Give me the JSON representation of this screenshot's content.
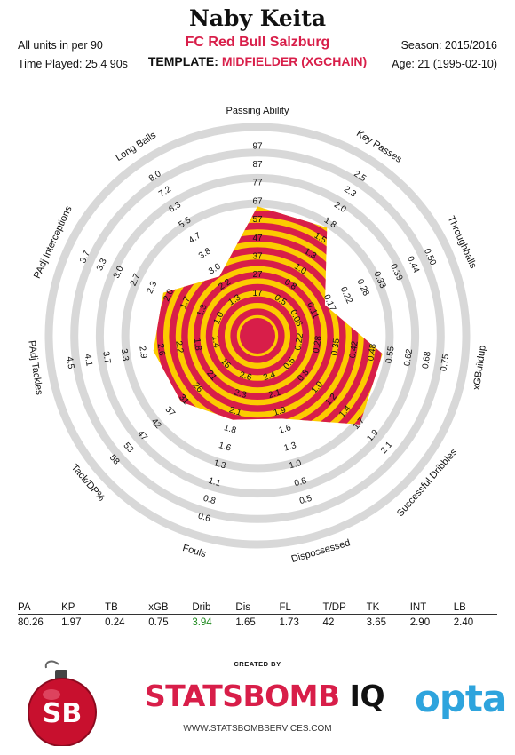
{
  "header": {
    "player_name": "Naby Keita",
    "team": "FC Red Bull Salzburg",
    "units_note": "All units in per 90",
    "time_played": "Time Played: 25.4 90s",
    "template_label": "TEMPLATE:",
    "template_value": "MIDFIELDER (XGCHAIN)",
    "season": "Season: 2015/2016",
    "age": "Age: 21 (1995-02-10)"
  },
  "colors": {
    "band_red": "#d81e49",
    "band_yellow": "#fccb00",
    "ring_gray": "#d8d8d8",
    "accent": "#d81e49",
    "highlight_green": "#1e8a1e",
    "opta_blue": "#2ea4dd"
  },
  "chart_data": {
    "type": "radar",
    "title": "Naby Keita",
    "metrics": [
      {
        "label": "Passing Ability",
        "short": "PA",
        "value": 80.26,
        "ticks": [
          "17",
          "27",
          "37",
          "47",
          "57",
          "67",
          "77",
          "87",
          "97"
        ]
      },
      {
        "label": "Key Passes",
        "short": "KP",
        "value": 1.97,
        "ticks": [
          "0.5",
          "0.8",
          "1.0",
          "1.3",
          "1.5",
          "1.8",
          "2.0",
          "2.3",
          "2.5"
        ]
      },
      {
        "label": "Throughballs",
        "short": "TB",
        "value": 0.24,
        "ticks": [
          "0.06",
          "0.11",
          "0.17",
          "0.22",
          "0.28",
          "0.33",
          "0.39",
          "0.44",
          "0.50"
        ]
      },
      {
        "label": "xGBuildup",
        "short": "xGB",
        "value": 0.75,
        "ticks": [
          "0.22",
          "0.28",
          "0.35",
          "0.42",
          "0.48",
          "0.55",
          "0.62",
          "0.68",
          "0.75"
        ]
      },
      {
        "label": "Successful Dribbles",
        "short": "Drib",
        "value": 3.94,
        "ticks": [
          "0.5",
          "0.8",
          "1.0",
          "1.2",
          "1.4",
          "1.7",
          "1.9",
          "2.1"
        ]
      },
      {
        "label": "Dispossessed",
        "short": "Dis",
        "value": 1.65,
        "ticks": [
          "2.4",
          "2.1",
          "1.9",
          "1.6",
          "1.3",
          "1.0",
          "0.8",
          "0.5"
        ]
      },
      {
        "label": "Fouls",
        "short": "FL",
        "value": 1.73,
        "ticks": [
          "2.6",
          "2.3",
          "2.1",
          "1.8",
          "1.6",
          "1.3",
          "1.1",
          "0.8",
          "0.6"
        ]
      },
      {
        "label": "Tack/DP%",
        "short": "T/DP",
        "value": 42,
        "ticks": [
          "15",
          "21",
          "26",
          "31",
          "37",
          "42",
          "47",
          "53",
          "58"
        ]
      },
      {
        "label": "PAdj Tackles",
        "short": "TK",
        "value": 3.65,
        "ticks": [
          "1.4",
          "1.8",
          "2.2",
          "2.6",
          "2.9",
          "3.3",
          "3.7",
          "4.1",
          "4.5"
        ]
      },
      {
        "label": "PAdj Interceptions",
        "short": "INT",
        "value": 2.9,
        "ticks": [
          "1.0",
          "1.3",
          "1.7",
          "2.0",
          "2.3",
          "2.7",
          "3.0",
          "3.3",
          "3.7"
        ]
      },
      {
        "label": "Long Balls",
        "short": "LB",
        "value": 2.4,
        "ticks": [
          "1.3",
          "2.2",
          "3.0",
          "3.8",
          "4.7",
          "5.5",
          "6.3",
          "7.2",
          "8.0"
        ]
      }
    ],
    "radar_extent": [
      9.1,
      9.04,
      4.6,
      8.86,
      9.6,
      5.6,
      5.7,
      6.8,
      7.14,
      7.0,
      4.3
    ],
    "ring_count": 10
  },
  "stats_table": {
    "headers": [
      "PA",
      "KP",
      "TB",
      "xGB",
      "Drib",
      "Dis",
      "FL",
      "T/DP",
      "TK",
      "INT",
      "LB"
    ],
    "values": [
      "80.26",
      "1.97",
      "0.24",
      "0.75",
      "3.94",
      "1.65",
      "1.73",
      "42",
      "3.65",
      "2.90",
      "2.40"
    ]
  },
  "footer": {
    "created_by": "CREATED BY",
    "brand_main": "STATSBOMB",
    "brand_iq": "IQ",
    "website": "WWW.STATSBOMBSERVICES.COM",
    "opta": "opta",
    "sb_logo_text": "SB"
  }
}
